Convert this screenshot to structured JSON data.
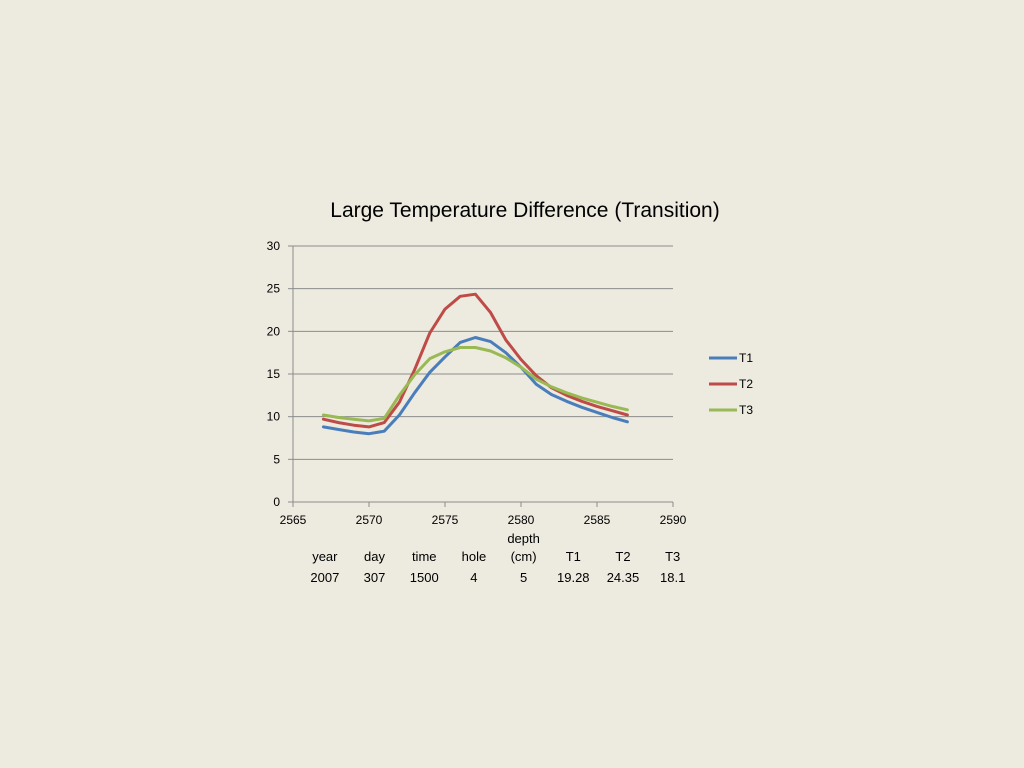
{
  "chart_data": {
    "type": "line",
    "title": "Large Temperature Difference (Transition)",
    "xlabel": "",
    "ylabel": "",
    "xlim": [
      2565,
      2590
    ],
    "ylim": [
      0,
      30
    ],
    "x_ticks": [
      2565,
      2570,
      2575,
      2580,
      2585,
      2590
    ],
    "y_ticks": [
      0,
      5,
      10,
      15,
      20,
      25,
      30
    ],
    "grid": true,
    "legend_position": "right",
    "x": [
      2567,
      2568,
      2569,
      2570,
      2571,
      2572,
      2573,
      2574,
      2575,
      2576,
      2577,
      2578,
      2579,
      2580,
      2581,
      2582,
      2583,
      2584,
      2585,
      2586,
      2587
    ],
    "series": [
      {
        "name": "T1",
        "color": "#4a7ebb",
        "values": [
          8.8,
          8.5,
          8.2,
          8.0,
          8.3,
          10.2,
          12.8,
          15.2,
          17.0,
          18.7,
          19.28,
          18.8,
          17.5,
          15.8,
          13.8,
          12.6,
          11.8,
          11.1,
          10.5,
          9.9,
          9.4
        ]
      },
      {
        "name": "T2",
        "color": "#be4b48",
        "values": [
          9.7,
          9.3,
          9.0,
          8.8,
          9.3,
          11.7,
          15.5,
          19.8,
          22.6,
          24.1,
          24.35,
          22.2,
          19.0,
          16.7,
          14.8,
          13.4,
          12.5,
          11.8,
          11.2,
          10.7,
          10.2
        ]
      },
      {
        "name": "T3",
        "color": "#98b954",
        "values": [
          10.2,
          9.9,
          9.7,
          9.5,
          9.8,
          12.5,
          14.9,
          16.8,
          17.6,
          18.1,
          18.1,
          17.7,
          16.9,
          15.8,
          14.4,
          13.5,
          12.8,
          12.2,
          11.7,
          11.2,
          10.8
        ]
      }
    ],
    "data_table": {
      "headers": [
        [
          "",
          "year"
        ],
        [
          "",
          "day"
        ],
        [
          "",
          "time"
        ],
        [
          "",
          "hole"
        ],
        [
          "depth",
          "(cm)"
        ],
        [
          "",
          "T1"
        ],
        [
          "",
          "T2"
        ],
        [
          "",
          "T3"
        ]
      ],
      "values": [
        "2007",
        "307",
        "1500",
        "4",
        "5",
        "19.28",
        "24.35",
        "18.1"
      ]
    }
  }
}
